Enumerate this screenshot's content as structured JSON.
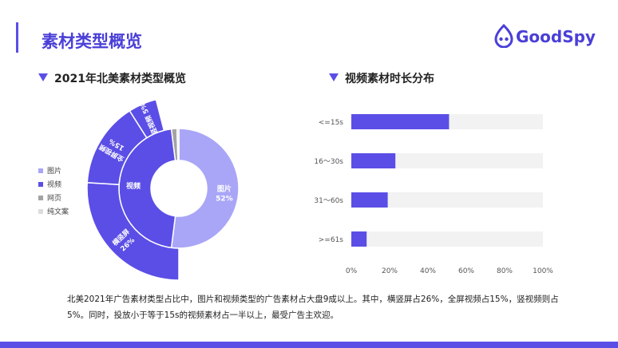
{
  "page": {
    "title": "素材类型概览",
    "brand": "GoodSpy",
    "summary": "北美2021年广告素材类型占比中，图片和视频类型的广告素材占大盘9成以上。其中，横竖屏占26%，全屏视频占15%，竖视频则占5%。同时，投放小于等于15s的视频素材占一半以上，最受广告主欢迎。"
  },
  "colors": {
    "accent": "#5b4ee6",
    "image": "#a9a6f7",
    "video": "#5b4ee6",
    "web": "#a3a3a3",
    "text_only": "#dcdcdc",
    "track": "#f2f2f2"
  },
  "chart_data": [
    {
      "type": "pie",
      "title": "2021年北美素材类型概览",
      "legend": [
        "图片",
        "视频",
        "网页",
        "纯文案"
      ],
      "legend_position": "left",
      "inner_ring": {
        "categories": [
          "图片",
          "视频",
          "网页",
          "纯文案"
        ],
        "values": [
          52,
          46,
          1.5,
          0.5
        ],
        "labels": [
          "图片",
          "视频",
          "",
          ""
        ],
        "value_labels": [
          "52%",
          "",
          "",
          ""
        ]
      },
      "outer_ring": {
        "categories": [
          "横竖屏",
          "全屏视频",
          "竖视频"
        ],
        "values": [
          26,
          15,
          5
        ],
        "value_labels": [
          "26%",
          "15%",
          "5%"
        ]
      }
    },
    {
      "type": "bar",
      "orientation": "horizontal",
      "title": "视频素材时长分布",
      "categories": [
        "<=15s",
        "16～30s",
        "31～60s",
        ">=61s"
      ],
      "values": [
        51,
        23,
        19,
        8
      ],
      "xlim": [
        0,
        100
      ],
      "xticks": [
        "0%",
        "20%",
        "40%",
        "60%",
        "80%",
        "100%"
      ],
      "grid": false
    }
  ]
}
